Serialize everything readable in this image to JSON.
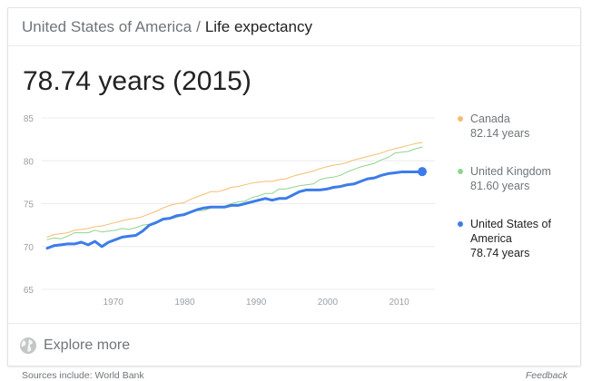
{
  "breadcrumb": {
    "root": "United States of America",
    "separator": "/",
    "current": "Life expectancy"
  },
  "headline": "78.74 years (2015)",
  "colors": {
    "canada": "#f6bd6e",
    "uk": "#8fd48e",
    "usa": "#3d7ce8",
    "grid": "#ececec",
    "tick": "#9aa0a6"
  },
  "legend": [
    {
      "name": "Canada",
      "value": "82.14 years",
      "color": "#f6bd6e"
    },
    {
      "name": "United Kingdom",
      "value": "81.60 years",
      "color": "#8fd48e"
    },
    {
      "name": "United States of America",
      "value": "78.74 years",
      "color": "#3d7ce8"
    }
  ],
  "footer": {
    "explore_label": "Explore more",
    "sources": "Sources include: World Bank",
    "feedback": "Feedback"
  },
  "chart_data": {
    "type": "line",
    "title": "",
    "xlabel": "",
    "ylabel": "",
    "xlim": [
      1960,
      2015
    ],
    "ylim": [
      65,
      85
    ],
    "yticks": [
      65,
      70,
      75,
      80,
      85
    ],
    "xticks": [
      1970,
      1980,
      1990,
      2000,
      2010
    ],
    "grid": true,
    "legend_position": "right",
    "x": [
      1960,
      1961,
      1962,
      1963,
      1964,
      1965,
      1966,
      1967,
      1968,
      1969,
      1970,
      1971,
      1972,
      1973,
      1974,
      1975,
      1976,
      1977,
      1978,
      1979,
      1980,
      1981,
      1982,
      1983,
      1984,
      1985,
      1986,
      1987,
      1988,
      1989,
      1990,
      1991,
      1992,
      1993,
      1994,
      1995,
      1996,
      1997,
      1998,
      1999,
      2000,
      2001,
      2002,
      2003,
      2004,
      2005,
      2006,
      2007,
      2008,
      2009,
      2010,
      2011,
      2012,
      2013,
      2014,
      2015
    ],
    "series": [
      {
        "name": "Canada",
        "values": [
          71.1,
          71.4,
          71.5,
          71.6,
          71.9,
          72.0,
          72.1,
          72.3,
          72.4,
          72.6,
          72.8,
          73.0,
          73.2,
          73.3,
          73.5,
          73.8,
          74.1,
          74.5,
          74.8,
          75.0,
          75.1,
          75.5,
          75.8,
          76.1,
          76.4,
          76.4,
          76.6,
          76.9,
          77.0,
          77.2,
          77.4,
          77.5,
          77.6,
          77.6,
          77.8,
          77.9,
          78.2,
          78.4,
          78.6,
          78.8,
          79.1,
          79.3,
          79.5,
          79.6,
          79.8,
          80.1,
          80.3,
          80.5,
          80.7,
          80.9,
          81.2,
          81.4,
          81.6,
          81.8,
          82.0,
          82.14
        ]
      },
      {
        "name": "United Kingdom",
        "values": [
          70.8,
          71.0,
          70.9,
          71.2,
          71.6,
          71.6,
          71.6,
          71.9,
          71.7,
          71.8,
          71.9,
          72.1,
          72.0,
          72.2,
          72.5,
          72.6,
          72.8,
          73.1,
          73.2,
          73.4,
          73.7,
          74.0,
          74.2,
          74.2,
          74.5,
          74.6,
          74.7,
          75.0,
          75.2,
          75.3,
          75.7,
          75.9,
          76.2,
          76.2,
          76.7,
          76.7,
          76.9,
          77.1,
          77.2,
          77.3,
          77.8,
          78.0,
          78.1,
          78.3,
          78.7,
          79.0,
          79.3,
          79.5,
          79.7,
          80.1,
          80.4,
          80.9,
          81.0,
          81.1,
          81.4,
          81.6
        ]
      },
      {
        "name": "United States of America",
        "values": [
          69.8,
          70.1,
          70.2,
          70.3,
          70.3,
          70.5,
          70.2,
          70.6,
          70.0,
          70.5,
          70.8,
          71.1,
          71.2,
          71.3,
          71.8,
          72.5,
          72.8,
          73.2,
          73.3,
          73.6,
          73.7,
          74.0,
          74.3,
          74.5,
          74.6,
          74.6,
          74.6,
          74.8,
          74.8,
          75.0,
          75.2,
          75.4,
          75.6,
          75.4,
          75.6,
          75.6,
          76.0,
          76.4,
          76.6,
          76.6,
          76.6,
          76.7,
          76.9,
          77.0,
          77.2,
          77.3,
          77.6,
          77.9,
          78.0,
          78.3,
          78.5,
          78.6,
          78.7,
          78.7,
          78.7,
          78.74
        ]
      }
    ]
  }
}
